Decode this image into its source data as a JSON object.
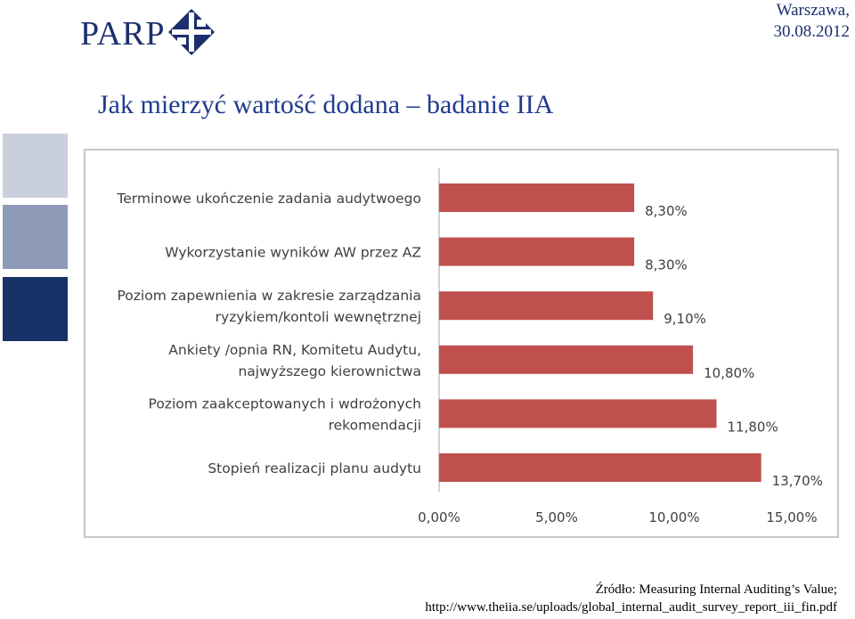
{
  "header": {
    "logo_text": "PARP",
    "date_line1": "Warszawa,",
    "date_line2": "30.08.2012"
  },
  "title": "Jak mierzyć wartość dodana – badanie IIA",
  "source": {
    "line1": "Źródło: Measuring Internal Auditing’s Value;",
    "line2": "http://www.theiia.se/uploads/global_internal_audit_survey_report_iii_fin.pdf"
  },
  "colors": {
    "bar": "#c0504d",
    "logo": "#1b2f6e",
    "title": "#1f3b8f",
    "deco_light": "#c9cfdc",
    "deco_mid": "#8d9ab8",
    "deco_dark": "#163266"
  },
  "chart_data": {
    "type": "bar",
    "orientation": "horizontal",
    "categories": [
      [
        "Terminowe ukończenie zadania audytwoego"
      ],
      [
        "Wykorzystanie wyników AW przez AZ"
      ],
      [
        "Poziom zapewnienia w zakresie zarządzania",
        "ryzykiem/kontoli wewnętrznej"
      ],
      [
        "Ankiety /opnia RN, Komitetu Audytu,",
        "najwyższego kierownictwa"
      ],
      [
        "Poziom zaakceptowanych i wdrożonych",
        "rekomendacji"
      ],
      [
        "Stopień realizacji planu audytu"
      ]
    ],
    "values": [
      8.3,
      8.3,
      9.1,
      10.8,
      11.8,
      13.7
    ],
    "data_labels": [
      "8,30%",
      "8,30%",
      "9,10%",
      "10,80%",
      "11,80%",
      "13,70%"
    ],
    "x_ticks": [
      "0,00%",
      "5,00%",
      "10,00%",
      "15,00%"
    ],
    "x_tick_values": [
      0,
      5,
      10,
      15
    ],
    "xlim": [
      0,
      15
    ],
    "grid": false,
    "legend": "none"
  }
}
